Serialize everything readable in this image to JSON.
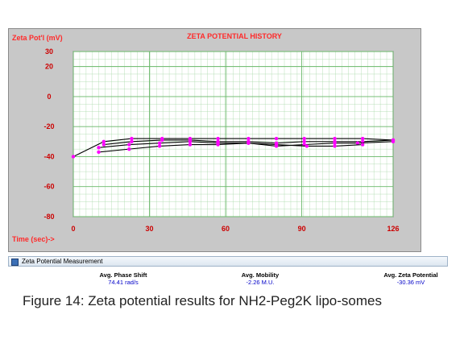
{
  "chart_data": {
    "type": "line",
    "title": "ZETA POTENTIAL HISTORY",
    "ylabel": "Zeta Pot'l (mV)",
    "xlabel": "Time (sec)->",
    "xlim": [
      0,
      126
    ],
    "ylim": [
      -80,
      30
    ],
    "x_ticks": [
      "0",
      "30",
      "60",
      "90",
      "126"
    ],
    "y_ticks": [
      "30",
      "20",
      "0",
      "-20",
      "-40",
      "-60",
      "-80"
    ],
    "grid": true,
    "series": [
      {
        "x": [
          0,
          12,
          23,
          35,
          46,
          57,
          69,
          80,
          91,
          103,
          114,
          126
        ],
        "y": [
          -40,
          -30,
          -28,
          -28,
          -28,
          -28,
          -28,
          -28,
          -28,
          -28,
          -28,
          -29
        ]
      },
      {
        "x": [
          12,
          23,
          35,
          46,
          57,
          69,
          80,
          91,
          103,
          114,
          126
        ],
        "y": [
          -32,
          -30,
          -29,
          -29,
          -30,
          -30,
          -31,
          -30,
          -30,
          -30,
          -29
        ]
      },
      {
        "x": [
          10,
          22,
          34,
          46,
          57,
          69,
          80,
          91,
          103,
          112,
          126
        ],
        "y": [
          -34,
          -32,
          -31,
          -30,
          -31,
          -31,
          -33,
          -32,
          -31,
          -31,
          -30
        ]
      },
      {
        "x": [
          10,
          22,
          34,
          46,
          57,
          69,
          80,
          92,
          103,
          114
        ],
        "y": [
          -37,
          -35,
          -33,
          -32,
          -32,
          -31,
          -32,
          -33,
          -33,
          -32
        ]
      }
    ]
  },
  "status_bar": {
    "label": "Zeta Potential Measurement"
  },
  "metrics": [
    {
      "label": "Avg. Phase Shift",
      "value": "74.41 rad/s"
    },
    {
      "label": "Avg. Mobility",
      "value": "-2.26 M.U."
    },
    {
      "label": "Avg. Zeta Potential",
      "value": "-30.36 mV"
    }
  ],
  "caption": "Figure 14: Zeta potential results for NH2-Peg2K lipo-somes",
  "colors": {
    "panel": "#c8c8c8",
    "plot": "#ffffff",
    "grid": "#a8d8a8",
    "line": "#000000",
    "marker": "#ff00ff",
    "label": "#ff2a2a"
  }
}
